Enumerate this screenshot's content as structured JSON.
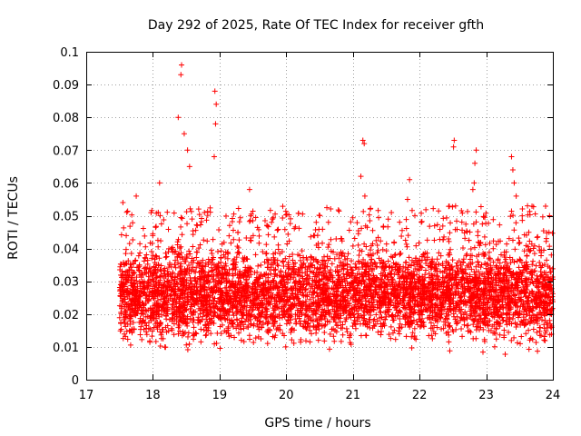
{
  "chart_data": {
    "type": "scatter",
    "title": "Day 292 of 2025, Rate Of TEC Index for receiver gfth",
    "xlabel": "GPS time / hours",
    "ylabel": "ROTI / TECUs",
    "xlim": [
      17,
      24
    ],
    "ylim": [
      0,
      0.1
    ],
    "xticks": [
      17,
      18,
      19,
      20,
      21,
      22,
      23,
      24
    ],
    "xtick_labels": [
      "17",
      "18",
      "19",
      "20",
      "21",
      "22",
      "23",
      "24"
    ],
    "yticks": [
      0,
      0.01,
      0.02,
      0.03,
      0.04,
      0.05,
      0.06,
      0.07,
      0.08,
      0.09,
      0.1
    ],
    "ytick_labels": [
      "0",
      "0.01",
      "0.02",
      "0.03",
      "0.04",
      "0.05",
      "0.06",
      "0.07",
      "0.08",
      "0.09",
      "0.1"
    ],
    "grid": true,
    "marker": "plus",
    "color": "#ff0000",
    "series": [
      {
        "name": "ROTI",
        "x_range": [
          17.5,
          24.0
        ],
        "typical_y_range": [
          0.007,
          0.045
        ],
        "notable_points": [
          {
            "x": 18.43,
            "y": 0.096
          },
          {
            "x": 18.42,
            "y": 0.093
          },
          {
            "x": 18.38,
            "y": 0.08
          },
          {
            "x": 18.47,
            "y": 0.075
          },
          {
            "x": 18.52,
            "y": 0.07
          },
          {
            "x": 18.55,
            "y": 0.065
          },
          {
            "x": 18.93,
            "y": 0.088
          },
          {
            "x": 18.95,
            "y": 0.084
          },
          {
            "x": 18.94,
            "y": 0.078
          },
          {
            "x": 18.92,
            "y": 0.068
          },
          {
            "x": 18.1,
            "y": 0.06
          },
          {
            "x": 18.08,
            "y": 0.051
          },
          {
            "x": 17.55,
            "y": 0.054
          },
          {
            "x": 17.75,
            "y": 0.056
          },
          {
            "x": 19.45,
            "y": 0.058
          },
          {
            "x": 19.78,
            "y": 0.048
          },
          {
            "x": 20.45,
            "y": 0.048
          },
          {
            "x": 21.15,
            "y": 0.073
          },
          {
            "x": 21.17,
            "y": 0.072
          },
          {
            "x": 21.12,
            "y": 0.062
          },
          {
            "x": 21.18,
            "y": 0.056
          },
          {
            "x": 21.85,
            "y": 0.061
          },
          {
            "x": 21.82,
            "y": 0.055
          },
          {
            "x": 22.52,
            "y": 0.073
          },
          {
            "x": 22.51,
            "y": 0.071
          },
          {
            "x": 22.85,
            "y": 0.07
          },
          {
            "x": 22.83,
            "y": 0.066
          },
          {
            "x": 22.82,
            "y": 0.06
          },
          {
            "x": 22.8,
            "y": 0.058
          },
          {
            "x": 23.38,
            "y": 0.068
          },
          {
            "x": 23.4,
            "y": 0.064
          },
          {
            "x": 23.42,
            "y": 0.06
          },
          {
            "x": 23.45,
            "y": 0.056
          },
          {
            "x": 23.62,
            "y": 0.053
          },
          {
            "x": 23.95,
            "y": 0.05
          }
        ]
      }
    ]
  }
}
